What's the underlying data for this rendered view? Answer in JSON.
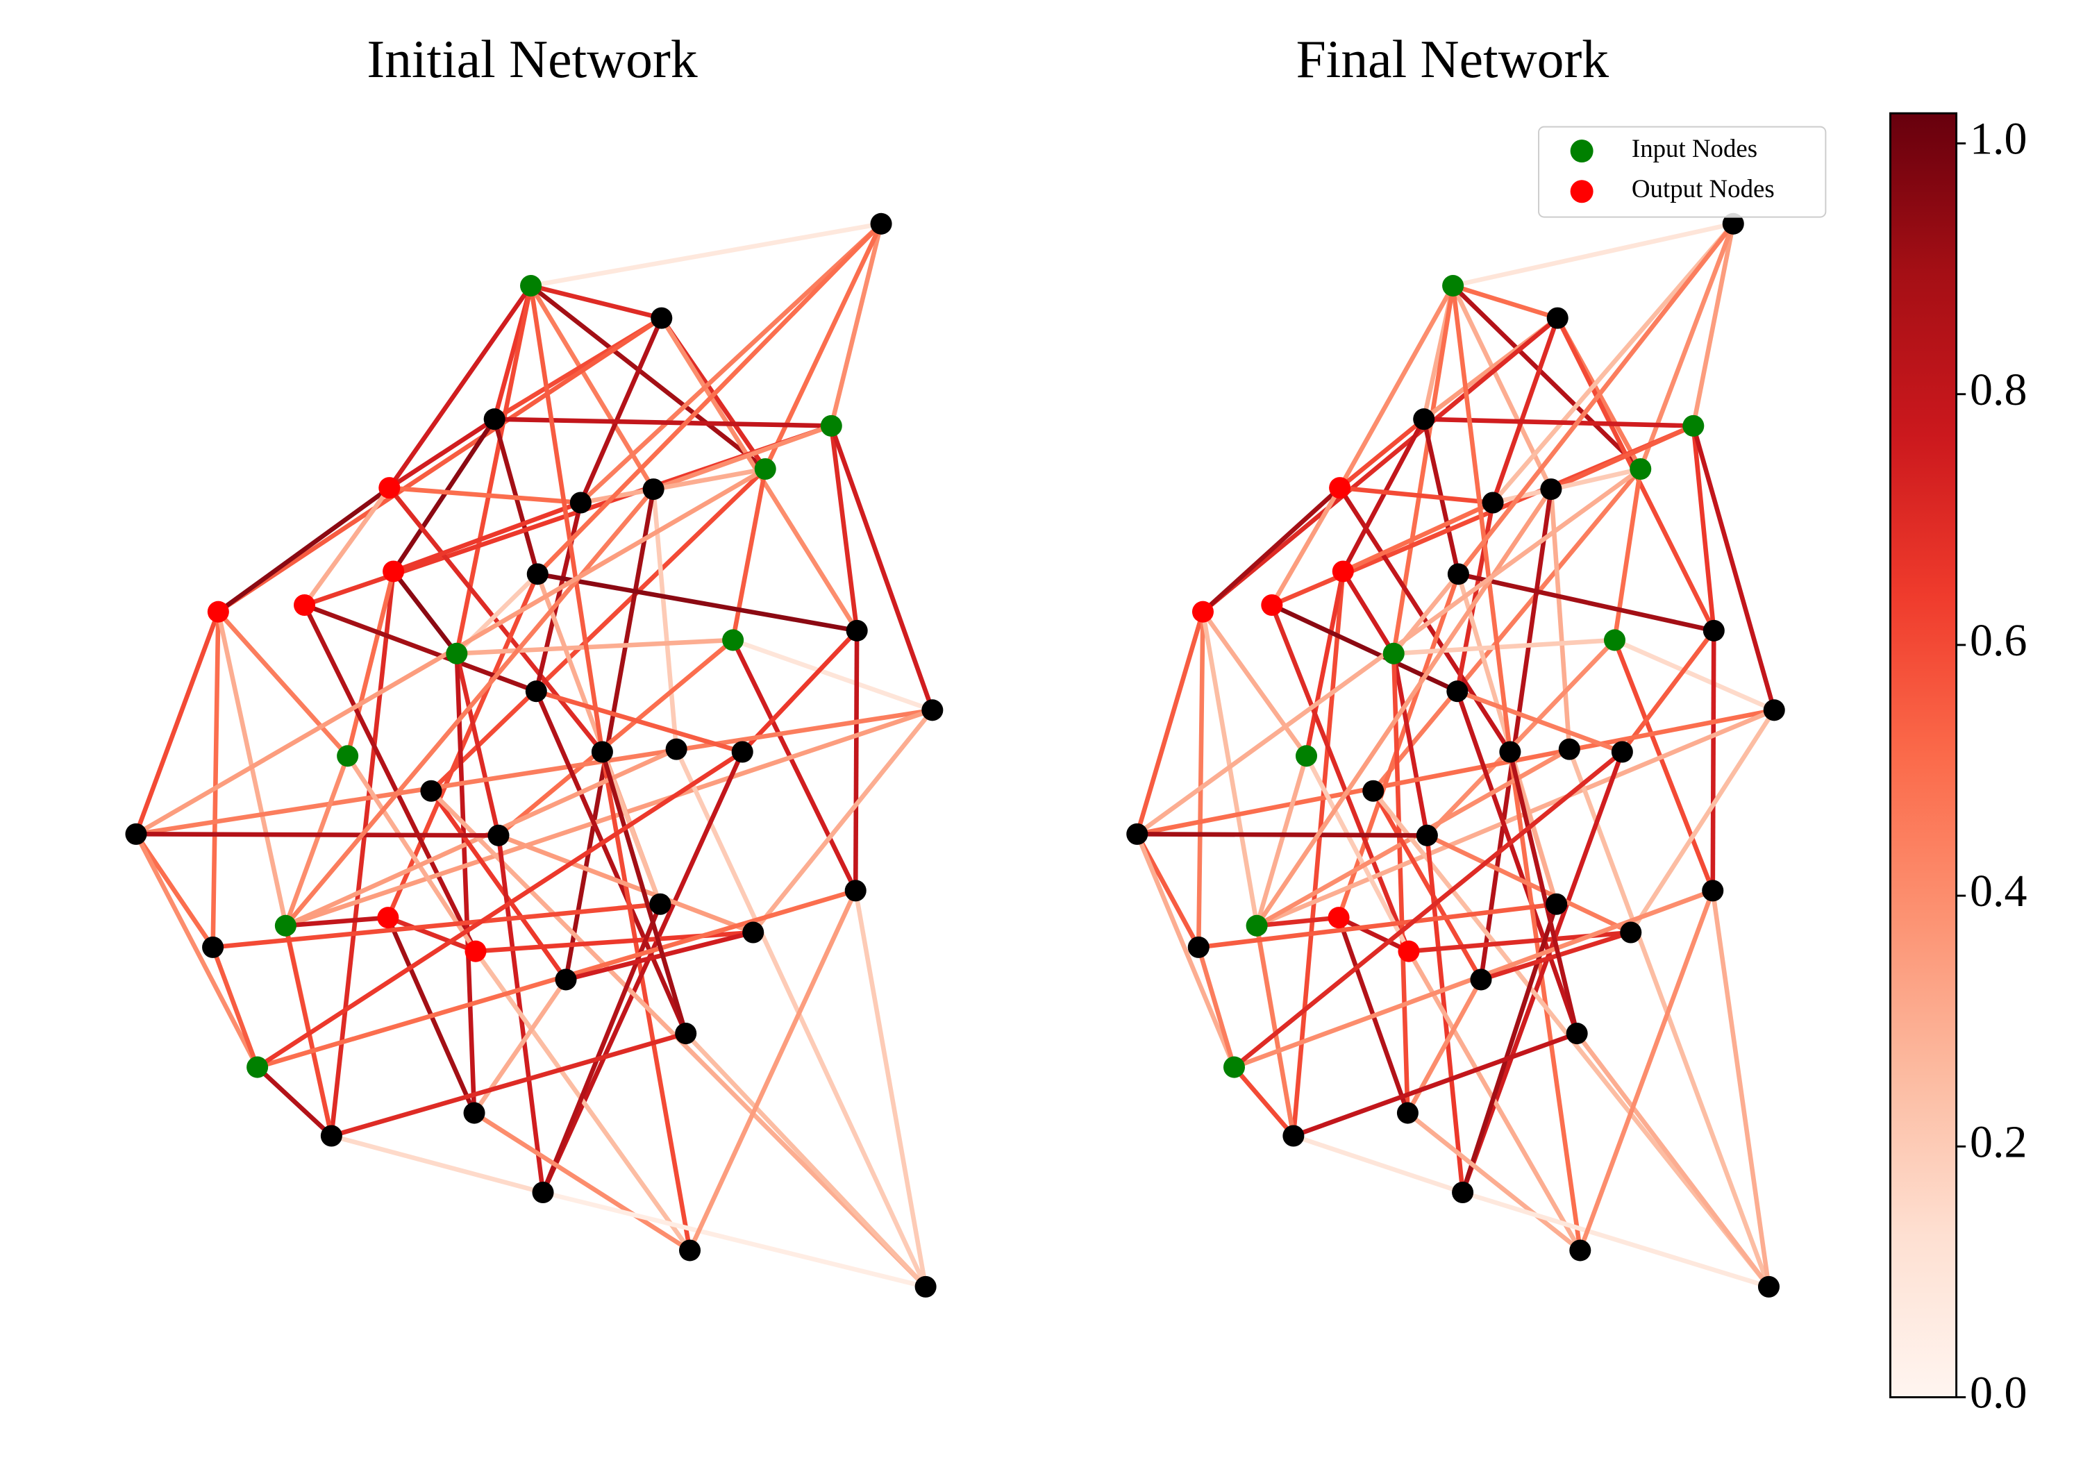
{
  "networks": [
    {
      "title": "Initial Network"
    },
    {
      "title": "Final Network"
    }
  ],
  "node_types": [
    "input",
    "hidden",
    "hidden",
    "hidden",
    "input",
    "input",
    "output",
    "hidden",
    "hidden",
    "output",
    "hidden",
    "output",
    "output",
    "input",
    "input",
    "hidden",
    "hidden",
    "hidden",
    "input",
    "hidden",
    "hidden",
    "hidden",
    "hidden",
    "hidden",
    "hidden",
    "input",
    "output",
    "output",
    "hidden",
    "hidden",
    "hidden",
    "hidden",
    "hidden",
    "hidden",
    "input",
    "hidden",
    "hidden",
    "hidden",
    "hidden",
    "hidden"
  ],
  "legend": [
    {
      "type": "input",
      "label": "Input Nodes",
      "color": "#008000"
    },
    {
      "type": "output",
      "label": "Output Nodes",
      "color": "#ff0000"
    }
  ],
  "hidden_color": "#000000",
  "colormap": "Reds",
  "colorbar": {
    "lim": [
      0,
      1.024
    ],
    "ticks": [
      {
        "value": 0,
        "label": "0.0"
      },
      0.2,
      0.4,
      0.6,
      0.8,
      {
        "value": 1,
        "label": "1.0"
      }
    ]
  },
  "edges": [
    [
      0,
      2,
      0.08,
      0.1
    ],
    [
      0,
      1,
      0.7,
      0.5
    ],
    [
      0,
      3,
      0.65,
      0.3
    ],
    [
      0,
      6,
      0.75,
      0.4
    ],
    [
      0,
      8,
      0.45,
      0.3
    ],
    [
      0,
      13,
      0.6,
      0.5
    ],
    [
      0,
      5,
      0.9,
      0.85
    ],
    [
      1,
      3,
      0.6,
      0.35
    ],
    [
      1,
      7,
      0.85,
      0.7
    ],
    [
      1,
      5,
      0.7,
      0.45
    ],
    [
      1,
      11,
      0.55,
      0.7
    ],
    [
      1,
      15,
      0.4,
      0.6
    ],
    [
      2,
      4,
      0.4,
      0.35
    ],
    [
      2,
      7,
      0.45,
      0.25
    ],
    [
      2,
      5,
      0.5,
      0.4
    ],
    [
      3,
      6,
      0.75,
      0.6
    ],
    [
      3,
      4,
      0.8,
      0.75
    ],
    [
      3,
      9,
      0.95,
      0.8
    ],
    [
      3,
      10,
      0.9,
      0.85
    ],
    [
      4,
      15,
      0.7,
      0.65
    ],
    [
      4,
      16,
      0.75,
      0.8
    ],
    [
      4,
      12,
      0.65,
      0.6
    ],
    [
      4,
      8,
      0.4,
      0.55
    ],
    [
      5,
      7,
      0.3,
      0.2
    ],
    [
      5,
      14,
      0.55,
      0.5
    ],
    [
      5,
      22,
      0.6,
      0.45
    ],
    [
      6,
      11,
      0.95,
      0.9
    ],
    [
      6,
      12,
      0.3,
      0.35
    ],
    [
      6,
      19,
      0.7,
      0.8
    ],
    [
      6,
      7,
      0.5,
      0.6
    ],
    [
      7,
      9,
      0.65,
      0.5
    ],
    [
      7,
      17,
      0.85,
      0.7
    ],
    [
      8,
      20,
      0.2,
      0.3
    ],
    [
      8,
      32,
      0.9,
      0.85
    ],
    [
      9,
      13,
      0.95,
      0.75
    ],
    [
      9,
      36,
      0.7,
      0.6
    ],
    [
      9,
      18,
      0.5,
      0.65
    ],
    [
      10,
      15,
      0.95,
      0.9
    ],
    [
      10,
      28,
      0.3,
      0.25
    ],
    [
      10,
      26,
      0.6,
      0.5
    ],
    [
      11,
      23,
      0.6,
      0.55
    ],
    [
      11,
      31,
      0.5,
      0.45
    ],
    [
      11,
      18,
      0.45,
      0.3
    ],
    [
      11,
      36,
      0.3,
      0.25
    ],
    [
      12,
      17,
      0.9,
      0.95
    ],
    [
      12,
      27,
      0.85,
      0.7
    ],
    [
      13,
      14,
      0.3,
      0.2
    ],
    [
      13,
      24,
      0.7,
      0.75
    ],
    [
      13,
      35,
      0.8,
      0.6
    ],
    [
      14,
      16,
      0.1,
      0.15
    ],
    [
      14,
      24,
      0.5,
      0.4
    ],
    [
      14,
      29,
      0.75,
      0.6
    ],
    [
      15,
      29,
      0.8,
      0.75
    ],
    [
      15,
      21,
      0.65,
      0.55
    ],
    [
      16,
      23,
      0.45,
      0.5
    ],
    [
      16,
      25,
      0.35,
      0.3
    ],
    [
      16,
      30,
      0.3,
      0.25
    ],
    [
      17,
      33,
      0.85,
      0.8
    ],
    [
      17,
      21,
      0.55,
      0.45
    ],
    [
      18,
      25,
      0.4,
      0.3
    ],
    [
      18,
      27,
      0.3,
      0.2
    ],
    [
      19,
      28,
      0.25,
      0.3
    ],
    [
      19,
      38,
      0.6,
      0.5
    ],
    [
      20,
      25,
      0.35,
      0.4
    ],
    [
      20,
      39,
      0.2,
      0.25
    ],
    [
      21,
      37,
      0.8,
      0.75
    ],
    [
      22,
      32,
      0.65,
      0.6
    ],
    [
      22,
      39,
      0.3,
      0.25
    ],
    [
      23,
      24,
      0.85,
      0.9
    ],
    [
      23,
      31,
      0.5,
      0.55
    ],
    [
      23,
      34,
      0.4,
      0.3
    ],
    [
      24,
      30,
      0.35,
      0.45
    ],
    [
      24,
      37,
      0.75,
      0.65
    ],
    [
      25,
      26,
      0.8,
      0.7
    ],
    [
      25,
      36,
      0.6,
      0.45
    ],
    [
      26,
      27,
      0.7,
      0.8
    ],
    [
      26,
      35,
      0.9,
      0.85
    ],
    [
      27,
      38,
      0.25,
      0.3
    ],
    [
      27,
      30,
      0.65,
      0.7
    ],
    [
      28,
      37,
      0.85,
      0.9
    ],
    [
      28,
      31,
      0.6,
      0.55
    ],
    [
      29,
      39,
      0.2,
      0.3
    ],
    [
      29,
      34,
      0.5,
      0.4
    ],
    [
      30,
      32,
      0.75,
      0.7
    ],
    [
      31,
      34,
      0.55,
      0.45
    ],
    [
      32,
      35,
      0.3,
      0.4
    ],
    [
      33,
      39,
      0.25,
      0.3
    ],
    [
      33,
      36,
      0.7,
      0.8
    ],
    [
      34,
      36,
      0.85,
      0.6
    ],
    [
      35,
      38,
      0.4,
      0.3
    ],
    [
      36,
      37,
      0.15,
      0.1
    ],
    [
      37,
      39,
      0.05,
      0.08
    ],
    [
      38,
      29,
      0.35,
      0.4
    ],
    [
      0,
      19,
      0.55,
      0.5
    ],
    [
      8,
      25,
      0.45,
      0.35
    ],
    [
      13,
      10,
      0.2,
      0.3
    ],
    [
      2,
      10,
      0.5,
      0.45
    ],
    [
      5,
      23,
      0.35,
      0.3
    ],
    [
      19,
      33,
      0.9,
      0.85
    ],
    [
      21,
      34,
      0.65,
      0.7
    ]
  ]
}
